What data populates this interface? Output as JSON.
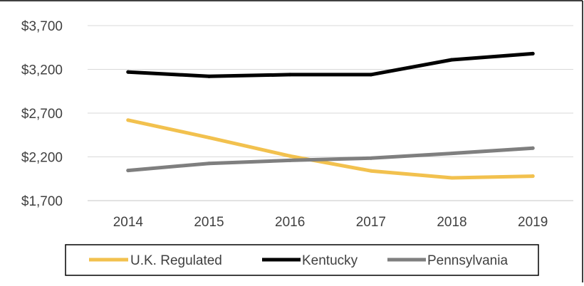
{
  "chart_data": {
    "type": "line",
    "title": "",
    "xlabel": "",
    "ylabel": "",
    "categories": [
      "2014",
      "2015",
      "2016",
      "2017",
      "2018",
      "2019"
    ],
    "y_ticks": [
      "$1,700",
      "$2,200",
      "$2,700",
      "$3,200",
      "$3,700"
    ],
    "ylim": [
      1700,
      3700
    ],
    "grid": true,
    "legend_position": "bottom",
    "series": [
      {
        "name": "U.K. Regulated",
        "color": "#F2C14E",
        "values": [
          2620,
          2420,
          2210,
          2040,
          1960,
          1980
        ]
      },
      {
        "name": "Kentucky",
        "color": "#000000",
        "values": [
          3170,
          3120,
          3140,
          3140,
          3310,
          3380
        ]
      },
      {
        "name": "Pennsylvania",
        "color": "#7F7F7F",
        "values": [
          2045,
          2125,
          2160,
          2185,
          2240,
          2300
        ]
      }
    ]
  }
}
